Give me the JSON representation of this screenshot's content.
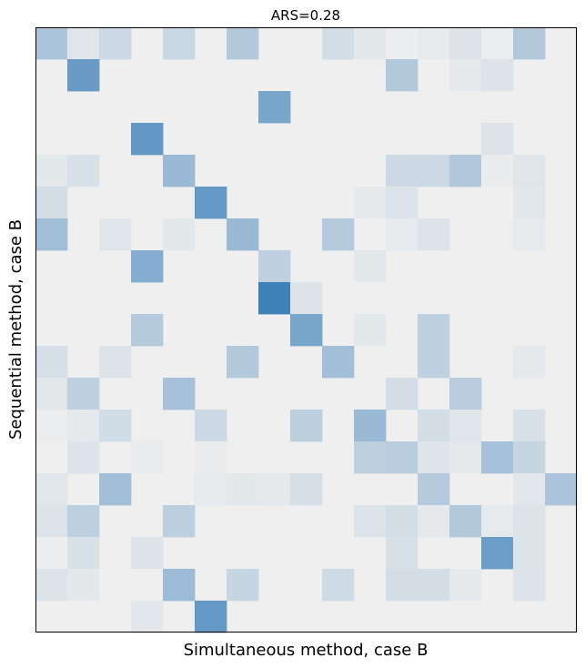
{
  "chart_data": {
    "type": "heatmap",
    "title": "ARS=0.28",
    "xlabel": "Simultaneous method, case B",
    "ylabel": "Sequential method, case B",
    "rows": 19,
    "cols": 17,
    "value_range": [
      0,
      1
    ],
    "colors": {
      "background": "#efefef",
      "high": "#2f77b4",
      "frame": "#000000"
    },
    "values": [
      [
        0.35,
        0.08,
        0.18,
        0,
        0.2,
        0,
        0.32,
        0,
        0,
        0.15,
        0.06,
        0.02,
        0.04,
        0.1,
        0.02,
        0.32,
        0
      ],
      [
        0,
        0.7,
        0,
        0,
        0,
        0,
        0,
        0,
        0,
        0,
        0,
        0.32,
        0,
        0.05,
        0.1,
        0,
        0
      ],
      [
        0,
        0,
        0,
        0,
        0,
        0,
        0,
        0.62,
        0,
        0,
        0,
        0,
        0,
        0,
        0,
        0,
        0
      ],
      [
        0,
        0,
        0,
        0.73,
        0,
        0,
        0,
        0,
        0,
        0,
        0,
        0,
        0,
        0,
        0.1,
        0,
        0
      ],
      [
        0.06,
        0.12,
        0,
        0,
        0.45,
        0,
        0,
        0,
        0,
        0,
        0,
        0.18,
        0.18,
        0.33,
        0.03,
        0.08,
        0
      ],
      [
        0.15,
        0,
        0,
        0,
        0,
        0.72,
        0,
        0,
        0,
        0,
        0.05,
        0.1,
        0,
        0,
        0,
        0.07,
        0
      ],
      [
        0.4,
        0,
        0.08,
        0,
        0.06,
        0,
        0.45,
        0,
        0,
        0.3,
        0,
        0.04,
        0.1,
        0,
        0,
        0.04,
        0
      ],
      [
        0,
        0,
        0,
        0.55,
        0,
        0,
        0,
        0.25,
        0,
        0,
        0.06,
        0,
        0,
        0,
        0,
        0,
        0
      ],
      [
        0,
        0,
        0,
        0,
        0,
        0,
        0,
        0.92,
        0.1,
        0,
        0,
        0,
        0,
        0,
        0,
        0,
        0
      ],
      [
        0,
        0,
        0,
        0.3,
        0,
        0,
        0,
        0,
        0.62,
        0,
        0.06,
        0,
        0.25,
        0,
        0,
        0,
        0
      ],
      [
        0.13,
        0,
        0.1,
        0,
        0,
        0,
        0.32,
        0,
        0,
        0.4,
        0,
        0,
        0.25,
        0,
        0,
        0.05,
        0
      ],
      [
        0.06,
        0.25,
        0,
        0,
        0.38,
        0,
        0,
        0,
        0,
        0,
        0,
        0.15,
        0,
        0.28,
        0,
        0,
        0
      ],
      [
        0.02,
        0.05,
        0.16,
        0,
        0,
        0.18,
        0,
        0,
        0.27,
        0,
        0.45,
        0,
        0.15,
        0.08,
        0,
        0.12,
        0
      ],
      [
        0,
        0.1,
        0,
        0.03,
        0,
        0.03,
        0,
        0,
        0,
        0,
        0.26,
        0.28,
        0.09,
        0.05,
        0.38,
        0.22,
        0
      ],
      [
        0.07,
        0,
        0.4,
        0,
        0,
        0.04,
        0.06,
        0.05,
        0.13,
        0,
        0,
        0,
        0.3,
        0,
        0,
        0.07,
        0.35
      ],
      [
        0.1,
        0.26,
        0,
        0,
        0.27,
        0,
        0,
        0,
        0,
        0,
        0.1,
        0.15,
        0.05,
        0.32,
        0.04,
        0.1,
        0
      ],
      [
        0.02,
        0.12,
        0,
        0.1,
        0,
        0,
        0,
        0,
        0,
        0,
        0,
        0.12,
        0,
        0,
        0.68,
        0.1,
        0
      ],
      [
        0.1,
        0.06,
        0,
        0,
        0.43,
        0,
        0.22,
        0,
        0,
        0.17,
        0,
        0.15,
        0.15,
        0.05,
        0,
        0.1,
        0
      ],
      [
        0,
        0,
        0,
        0.07,
        0,
        0.72,
        0,
        0,
        0,
        0,
        0,
        0,
        0,
        0,
        0,
        0,
        0
      ]
    ]
  }
}
